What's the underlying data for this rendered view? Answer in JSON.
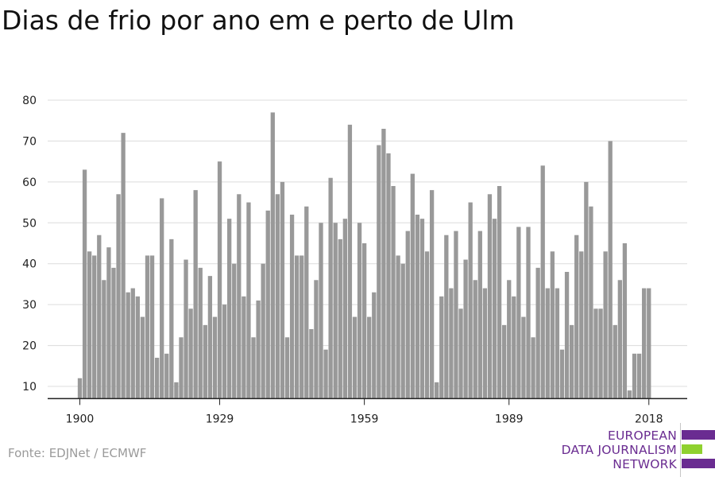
{
  "title": "Dias de frio por ano em e perto de Ulm",
  "source": "Fonte: EDJNet / ECMWF",
  "logo": {
    "lines": [
      "EUROPEAN",
      "DATA JOURNALISM",
      "NETWORK"
    ],
    "colors": {
      "purple": "#6a2c91",
      "green": "#8fd12f"
    }
  },
  "chart_data": {
    "type": "bar",
    "title": "",
    "xlabel": "",
    "ylabel": "",
    "ylim": [
      7,
      80
    ],
    "yticks": [
      10,
      20,
      30,
      40,
      50,
      60,
      70,
      80
    ],
    "xticks": [
      1900,
      1929,
      1959,
      1989,
      2018
    ],
    "grid": true,
    "legend": "none",
    "bar_color": "#999999",
    "x": [
      1900,
      1901,
      1902,
      1903,
      1904,
      1905,
      1906,
      1907,
      1908,
      1909,
      1910,
      1911,
      1912,
      1913,
      1914,
      1915,
      1916,
      1917,
      1918,
      1919,
      1920,
      1921,
      1922,
      1923,
      1924,
      1925,
      1926,
      1927,
      1928,
      1929,
      1930,
      1931,
      1932,
      1933,
      1934,
      1935,
      1936,
      1937,
      1938,
      1939,
      1940,
      1941,
      1942,
      1943,
      1944,
      1945,
      1946,
      1947,
      1948,
      1949,
      1950,
      1951,
      1952,
      1953,
      1954,
      1955,
      1956,
      1957,
      1958,
      1959,
      1960,
      1961,
      1962,
      1963,
      1964,
      1965,
      1966,
      1967,
      1968,
      1969,
      1970,
      1971,
      1972,
      1973,
      1974,
      1975,
      1976,
      1977,
      1978,
      1979,
      1980,
      1981,
      1982,
      1983,
      1984,
      1985,
      1986,
      1987,
      1988,
      1989,
      1990,
      1991,
      1992,
      1993,
      1994,
      1995,
      1996,
      1997,
      1998,
      1999,
      2000,
      2001,
      2002,
      2003,
      2004,
      2005,
      2006,
      2007,
      2008,
      2009,
      2010,
      2011,
      2012,
      2013,
      2014,
      2015,
      2016,
      2017,
      2018
    ],
    "values": [
      12,
      63,
      43,
      42,
      47,
      36,
      44,
      39,
      57,
      72,
      33,
      34,
      32,
      27,
      42,
      42,
      17,
      56,
      18,
      46,
      11,
      22,
      41,
      29,
      58,
      39,
      25,
      37,
      27,
      65,
      30,
      51,
      40,
      57,
      32,
      55,
      22,
      31,
      40,
      53,
      77,
      57,
      60,
      22,
      52,
      42,
      42,
      54,
      24,
      36,
      50,
      19,
      61,
      50,
      46,
      51,
      74,
      27,
      50,
      45,
      27,
      33,
      69,
      73,
      67,
      59,
      42,
      40,
      48,
      62,
      52,
      51,
      43,
      58,
      11,
      32,
      47,
      34,
      48,
      29,
      41,
      55,
      36,
      48,
      34,
      57,
      51,
      59,
      25,
      36,
      32,
      49,
      27,
      49,
      22,
      39,
      64,
      34,
      43,
      34,
      19,
      38,
      25,
      47,
      43,
      60,
      54,
      29,
      29,
      43,
      70,
      25,
      36,
      45,
      9,
      18,
      18,
      34,
      34
    ]
  }
}
